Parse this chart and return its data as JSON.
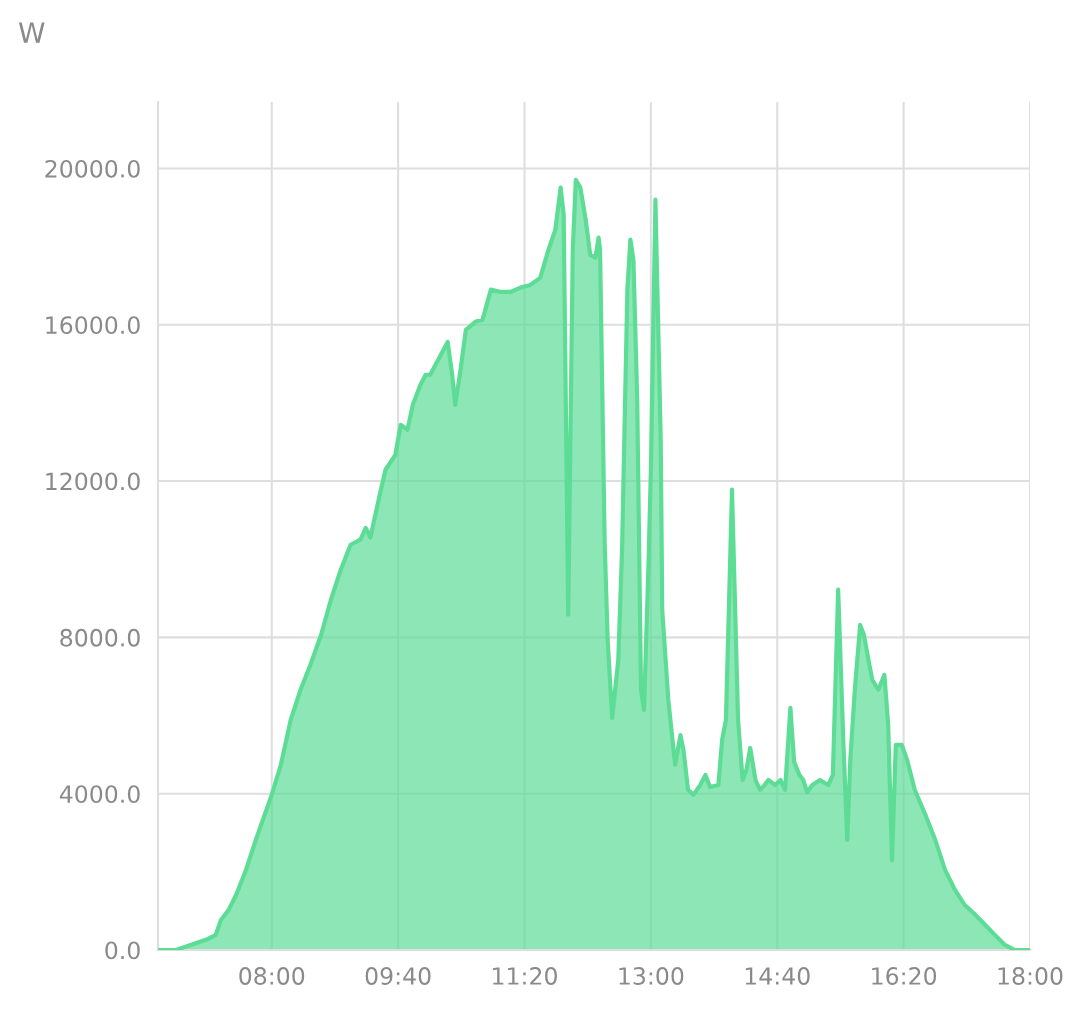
{
  "chart_data": {
    "type": "area",
    "ylabel": "W",
    "x": [
      6.5,
      6.74,
      6.93,
      7.13,
      7.26,
      7.33,
      7.43,
      7.53,
      7.66,
      7.79,
      7.92,
      8.0,
      8.12,
      8.25,
      8.38,
      8.51,
      8.65,
      8.78,
      8.91,
      9.04,
      9.17,
      9.24,
      9.3,
      9.41,
      9.5,
      9.63,
      9.7,
      9.79,
      9.86,
      9.96,
      10.03,
      10.09,
      10.23,
      10.32,
      10.38,
      10.42,
      10.49,
      10.56,
      10.69,
      10.78,
      10.89,
      11.02,
      11.15,
      11.28,
      11.41,
      11.54,
      11.65,
      11.74,
      11.81,
      11.85,
      11.91,
      11.97,
      12.01,
      12.07,
      12.14,
      12.2,
      12.27,
      12.31,
      12.33,
      12.39,
      12.43,
      12.49,
      12.57,
      12.62,
      12.69,
      12.73,
      12.77,
      12.82,
      12.87,
      12.91,
      12.97,
      13.0,
      13.06,
      13.13,
      13.15,
      13.23,
      13.32,
      13.39,
      13.43,
      13.49,
      13.56,
      13.65,
      13.72,
      13.78,
      13.89,
      13.94,
      13.99,
      14.07,
      14.15,
      14.21,
      14.26,
      14.31,
      14.38,
      14.44,
      14.5,
      14.55,
      14.64,
      14.71,
      14.77,
      14.84,
      14.89,
      14.96,
      15.01,
      15.06,
      15.13,
      15.23,
      15.34,
      15.4,
      15.47,
      15.54,
      15.59,
      15.63,
      15.69,
      15.76,
      15.81,
      15.87,
      15.92,
      16.0,
      16.08,
      16.13,
      16.18,
      16.23,
      16.31,
      16.38,
      16.48,
      16.62,
      16.75,
      16.88,
      17.01,
      17.14,
      17.28,
      17.41,
      17.54,
      17.67,
      17.8,
      18.0
    ],
    "series": [
      {
        "color": "#5ddc96",
        "values": [
          0,
          0,
          130,
          260,
          380,
          770,
          1020,
          1410,
          2050,
          2820,
          3530,
          3970,
          4740,
          5890,
          6660,
          7300,
          8060,
          8960,
          9730,
          10370,
          10500,
          10800,
          10550,
          11520,
          12290,
          12670,
          13440,
          13310,
          13950,
          14460,
          14720,
          14720,
          15230,
          15560,
          14720,
          13950,
          14850,
          15870,
          16080,
          16130,
          16900,
          16840,
          16840,
          16950,
          17020,
          17200,
          17920,
          18430,
          19510,
          18820,
          8580,
          17920,
          19710,
          19510,
          18690,
          17790,
          17720,
          18230,
          17920,
          10500,
          7940,
          5940,
          7420,
          10240,
          16900,
          18180,
          17660,
          14080,
          6660,
          6140,
          9980,
          12290,
          19200,
          13060,
          8700,
          6400,
          4740,
          5500,
          5120,
          4100,
          3970,
          4220,
          4480,
          4170,
          4220,
          5380,
          5890,
          11780,
          5890,
          4350,
          4610,
          5170,
          4350,
          4100,
          4220,
          4350,
          4220,
          4350,
          4100,
          6200,
          4810,
          4480,
          4350,
          4040,
          4220,
          4350,
          4220,
          4480,
          9220,
          5250,
          2820,
          4860,
          6660,
          8320,
          8060,
          7420,
          6910,
          6660,
          7040,
          5760,
          2300,
          5250,
          5250,
          4860,
          4100,
          3460,
          2820,
          2050,
          1540,
          1150,
          900,
          640,
          380,
          130,
          0,
          0
        ]
      }
    ],
    "xlim": [
      6.5,
      18
    ],
    "xticks": [
      {
        "value": 8,
        "label": "08:00"
      },
      {
        "value": 9.6667,
        "label": "09:40"
      },
      {
        "value": 11.3333,
        "label": "11:20"
      },
      {
        "value": 13,
        "label": "13:00"
      },
      {
        "value": 14.6667,
        "label": "14:40"
      },
      {
        "value": 16.3333,
        "label": "16:20"
      },
      {
        "value": 18,
        "label": "18:00"
      }
    ],
    "ylim": [
      0,
      21700
    ],
    "yticks": [
      {
        "value": 0,
        "label": "0.0"
      },
      {
        "value": 4000,
        "label": "4000.0"
      },
      {
        "value": 8000,
        "label": "8000.0"
      },
      {
        "value": 12000,
        "label": "12000.0"
      },
      {
        "value": 16000,
        "label": "16000.0"
      },
      {
        "value": 20000,
        "label": "20000.0"
      }
    ],
    "grid": true
  }
}
